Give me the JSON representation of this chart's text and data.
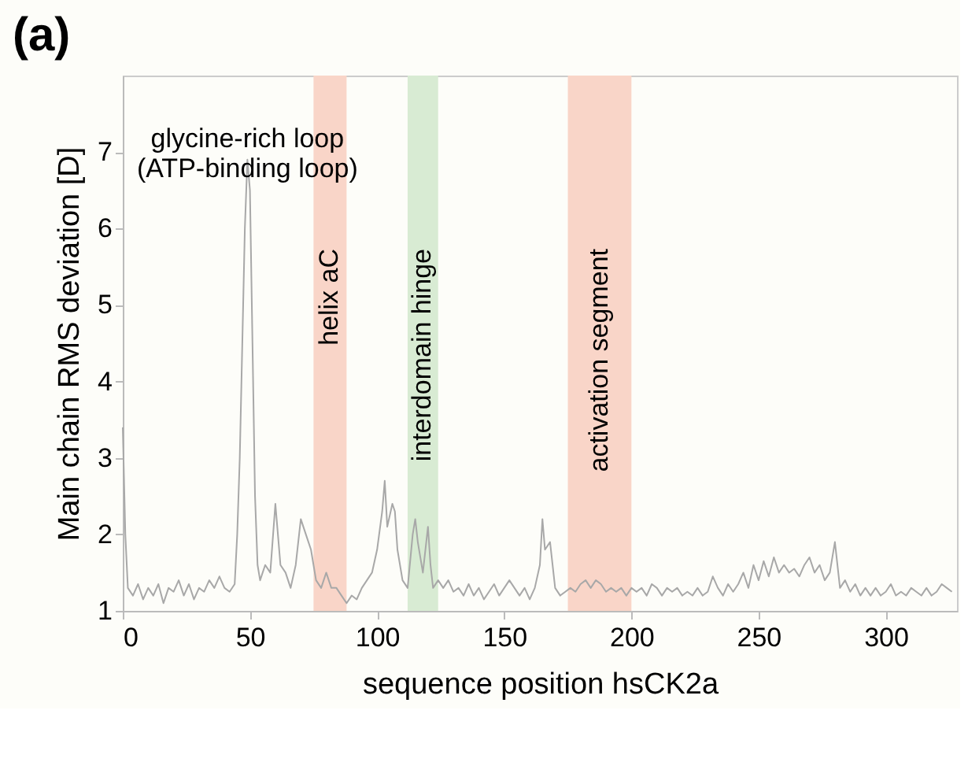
{
  "chart_data": {
    "type": "line",
    "title": "(a)",
    "xlabel": "sequence position hsCK2a",
    "ylabel": "Main chain RMS deviation [D]",
    "xlim": [
      0,
      328
    ],
    "ylim": [
      1,
      8
    ],
    "xticks": [
      0,
      50,
      100,
      150,
      200,
      250,
      300
    ],
    "yticks": [
      1,
      2,
      3,
      4,
      5,
      6,
      7
    ],
    "grid": false,
    "annotations": [
      {
        "text": "glycine-rich loop\n(ATP-binding loop)",
        "x": 49,
        "y": 6.9
      }
    ],
    "bands": [
      {
        "axis": "x",
        "from": 75,
        "to": 88,
        "label": "helix aC",
        "color": "#f9d5c8"
      },
      {
        "axis": "x",
        "from": 112,
        "to": 124,
        "label": "interdomain hinge",
        "color": "#d8ebd3"
      },
      {
        "axis": "x",
        "from": 175,
        "to": 200,
        "label": "activation segment",
        "color": "#f9d5c8"
      }
    ],
    "series": [
      {
        "color": "#a8a8a8",
        "x": [
          0,
          1,
          2,
          4,
          6,
          8,
          10,
          12,
          14,
          16,
          18,
          20,
          22,
          24,
          26,
          28,
          30,
          32,
          34,
          36,
          38,
          40,
          42,
          44,
          45,
          46,
          47,
          48,
          49,
          50,
          51,
          52,
          53,
          54,
          56,
          58,
          60,
          61,
          62,
          64,
          66,
          68,
          70,
          72,
          74,
          76,
          78,
          80,
          82,
          84,
          86,
          88,
          90,
          92,
          94,
          96,
          98,
          100,
          102,
          103,
          104,
          106,
          107,
          108,
          110,
          112,
          114,
          115,
          116,
          118,
          120,
          121,
          122,
          124,
          126,
          128,
          130,
          132,
          134,
          136,
          138,
          140,
          142,
          144,
          146,
          148,
          150,
          152,
          154,
          156,
          158,
          160,
          162,
          164,
          165,
          166,
          168,
          170,
          172,
          174,
          176,
          178,
          180,
          182,
          184,
          186,
          188,
          190,
          192,
          194,
          196,
          198,
          200,
          202,
          204,
          206,
          208,
          210,
          212,
          214,
          216,
          218,
          220,
          222,
          224,
          226,
          228,
          230,
          232,
          234,
          236,
          238,
          240,
          242,
          244,
          246,
          248,
          250,
          252,
          254,
          256,
          258,
          260,
          262,
          264,
          266,
          268,
          270,
          272,
          274,
          276,
          278,
          280,
          282,
          284,
          286,
          288,
          290,
          292,
          294,
          296,
          298,
          300,
          302,
          304,
          306,
          308,
          310,
          312,
          314,
          316,
          318,
          320,
          322,
          324,
          326
        ],
        "values": [
          3.4,
          2.0,
          1.3,
          1.2,
          1.35,
          1.15,
          1.3,
          1.2,
          1.35,
          1.1,
          1.3,
          1.25,
          1.4,
          1.2,
          1.35,
          1.15,
          1.3,
          1.25,
          1.4,
          1.3,
          1.45,
          1.3,
          1.25,
          1.35,
          2.0,
          3.0,
          4.5,
          6.0,
          6.9,
          6.5,
          4.5,
          2.5,
          1.6,
          1.4,
          1.6,
          1.5,
          2.4,
          2.0,
          1.6,
          1.5,
          1.3,
          1.6,
          2.2,
          2.0,
          1.8,
          1.4,
          1.3,
          1.5,
          1.3,
          1.3,
          1.2,
          1.1,
          1.2,
          1.15,
          1.3,
          1.4,
          1.5,
          1.8,
          2.3,
          2.7,
          2.1,
          2.4,
          2.3,
          1.8,
          1.4,
          1.3,
          2.0,
          2.2,
          1.9,
          1.5,
          2.1,
          1.6,
          1.3,
          1.4,
          1.3,
          1.4,
          1.25,
          1.3,
          1.2,
          1.35,
          1.2,
          1.3,
          1.15,
          1.25,
          1.35,
          1.2,
          1.3,
          1.4,
          1.3,
          1.2,
          1.3,
          1.15,
          1.3,
          1.6,
          2.2,
          1.8,
          1.9,
          1.3,
          1.2,
          1.25,
          1.3,
          1.25,
          1.35,
          1.4,
          1.3,
          1.4,
          1.35,
          1.25,
          1.3,
          1.25,
          1.3,
          1.2,
          1.3,
          1.25,
          1.3,
          1.2,
          1.35,
          1.3,
          1.2,
          1.3,
          1.25,
          1.3,
          1.2,
          1.25,
          1.2,
          1.3,
          1.2,
          1.25,
          1.45,
          1.3,
          1.2,
          1.35,
          1.25,
          1.35,
          1.5,
          1.3,
          1.6,
          1.4,
          1.65,
          1.45,
          1.7,
          1.5,
          1.6,
          1.5,
          1.55,
          1.45,
          1.6,
          1.7,
          1.5,
          1.6,
          1.4,
          1.5,
          1.9,
          1.3,
          1.4,
          1.25,
          1.35,
          1.2,
          1.3,
          1.2,
          1.3,
          1.2,
          1.25,
          1.35,
          1.2,
          1.25,
          1.2,
          1.3,
          1.25,
          1.2,
          1.3,
          1.2,
          1.25,
          1.35,
          1.3,
          1.25
        ]
      }
    ]
  }
}
